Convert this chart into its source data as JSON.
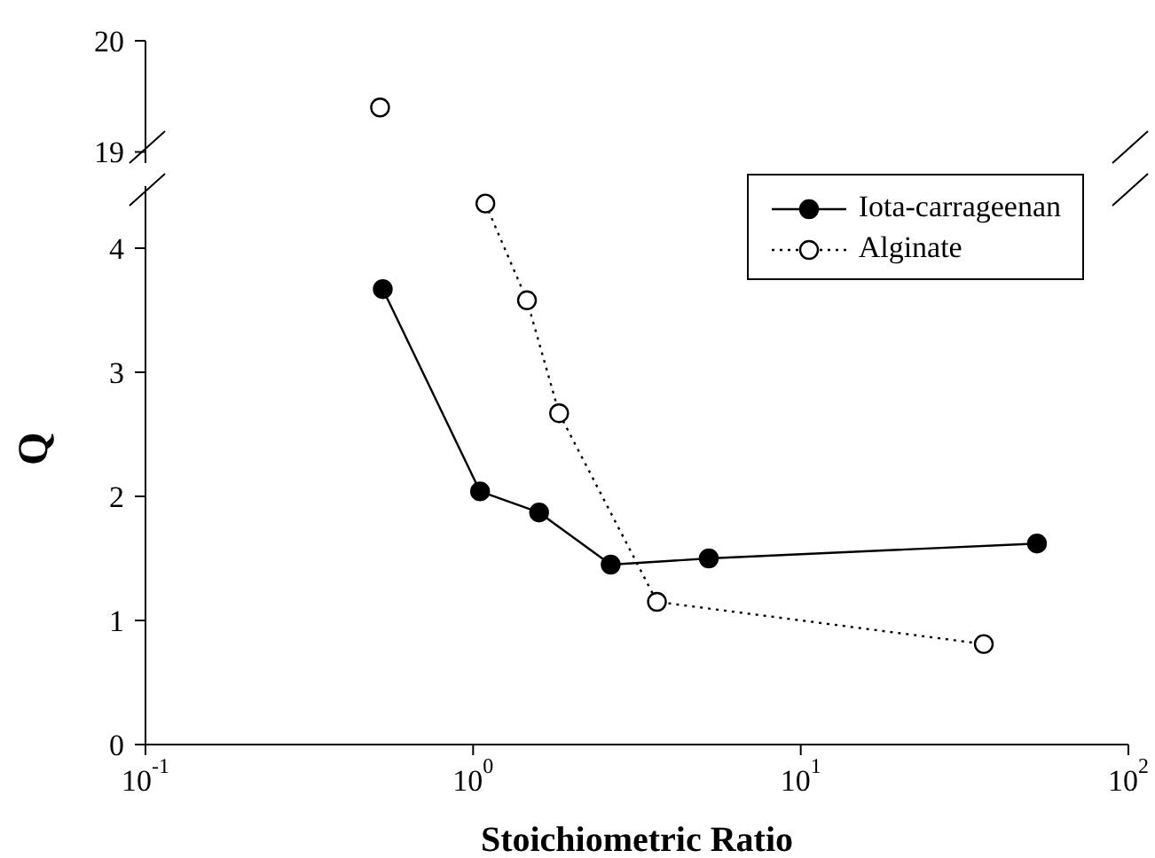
{
  "chart_data": [
    {
      "type": "line",
      "xlim": [
        0.1,
        100
      ],
      "ylim": [
        18.9,
        20
      ],
      "yticks": [
        19,
        20
      ],
      "log": "x",
      "tick_labels": "y",
      "series": [
        {
          "color": "#000000",
          "marker": "circle",
          "line_style": "dotted",
          "x": [
            0.52
          ],
          "values": [
            19.4
          ]
        }
      ]
    },
    {
      "type": "line",
      "xlabel": "Stoichiometric Ratio",
      "ylabel": "Q",
      "xlim": [
        0.1,
        100
      ],
      "xticks": [
        {
          "value": 0.1,
          "label": "10$^{-1}$"
        },
        {
          "value": 1,
          "label": "10$^{0}$"
        },
        {
          "value": 10,
          "label": "10$^{1}$"
        },
        {
          "value": 100,
          "label": "10$^{2}$"
        }
      ],
      "ylim": [
        0,
        4.5
      ],
      "yticks": [
        0,
        1,
        2,
        3,
        4
      ],
      "log": "x",
      "legend": "top right",
      "series": [
        {
          "name": "Iota-carrageenan",
          "color": "#000000",
          "marker": "circle",
          "line_style": "solid",
          "x": [
            0.53,
            1.05,
            1.59,
            2.63,
            5.24,
            52.6
          ],
          "values": [
            3.67,
            2.04,
            1.87,
            1.45,
            1.5,
            1.62
          ]
        },
        {
          "name": "Alginate",
          "color": "#000000",
          "marker": "circle",
          "line_style": "dotted",
          "x": [
            1.09,
            1.46,
            1.83,
            3.64,
            36.2
          ],
          "values": [
            4.36,
            3.58,
            2.67,
            1.15,
            0.81
          ]
        }
      ]
    }
  ]
}
